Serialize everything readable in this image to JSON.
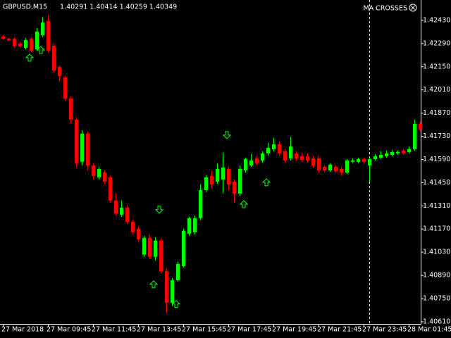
{
  "chart_data": {
    "type": "candlestick",
    "symbol": "GBPUSD,M15",
    "quote": "1.40291 1.40414 1.40259 1.40349",
    "indicator": "MA CROSSES",
    "bull_color": "#00ff00",
    "bear_color": "#ff0000",
    "signal_color": "#00ff00",
    "grid": false,
    "categories": [
      "27 Mar 2018",
      null,
      null,
      null,
      null,
      null,
      null,
      null,
      "27 Mar 09:45",
      null,
      null,
      null,
      null,
      null,
      null,
      null,
      "27 Mar 11:45",
      null,
      null,
      null,
      null,
      null,
      null,
      null,
      "27 Mar 13:45",
      null,
      null,
      null,
      null,
      null,
      null,
      null,
      "27 Mar 15:45",
      null,
      null,
      null,
      null,
      null,
      null,
      null,
      "27 Mar 17:45",
      null,
      null,
      null,
      null,
      null,
      null,
      null,
      "27 Mar 19:45",
      null,
      null,
      null,
      null,
      null,
      null,
      null,
      "27 Mar 21:45",
      null,
      null,
      null,
      null,
      null,
      null,
      null,
      "27 Mar 23:45",
      null,
      null,
      null,
      null,
      null,
      null,
      null,
      "28 Mar 01:45",
      null,
      null
    ],
    "open": [
      1.42332,
      1.42319,
      1.42319,
      1.4229,
      1.42264,
      1.42319,
      1.42255,
      1.4234,
      1.42426,
      1.42277,
      1.42149,
      1.42086,
      1.41958,
      1.41831,
      1.41576,
      1.41746,
      1.41554,
      1.41482,
      1.41511,
      1.41482,
      1.41342,
      1.41257,
      1.41299,
      1.41214,
      1.41172,
      1.41015,
      1.41117,
      1.41002,
      1.411,
      1.40916,
      1.40725,
      1.40861,
      1.40946,
      1.41142,
      1.41151,
      1.41236,
      1.41405,
      1.4149,
      1.41456,
      1.41469,
      1.41533,
      1.41456,
      1.41384,
      1.41524,
      1.41554,
      1.41597,
      1.41584,
      1.41627,
      1.41652,
      1.41682,
      1.41639,
      1.41597,
      1.41627,
      1.4161,
      1.4161,
      1.41597,
      1.41597,
      1.41546,
      1.41524,
      1.41546,
      1.41533,
      1.41511,
      1.41576,
      1.41576,
      1.41592,
      1.41554,
      1.41592,
      1.41601,
      1.4161,
      1.41618,
      1.41627,
      1.41644,
      1.41635,
      1.41652,
      1.41805
    ],
    "high": [
      1.4234,
      1.42324,
      1.42328,
      1.42298,
      1.42324,
      1.42328,
      1.42383,
      1.42447,
      1.4246,
      1.4229,
      1.42158,
      1.42094,
      1.41971,
      1.41843,
      1.41767,
      1.41759,
      1.41567,
      1.41545,
      1.41524,
      1.4149,
      1.41384,
      1.41342,
      1.41312,
      1.41227,
      1.41184,
      1.41129,
      1.41134,
      1.41121,
      1.41113,
      1.40929,
      1.40874,
      1.40972,
      1.41172,
      1.41244,
      1.41252,
      1.41439,
      1.41494,
      1.4152,
      1.41567,
      1.41631,
      1.41545,
      1.41469,
      1.41554,
      1.41601,
      1.41622,
      1.4161,
      1.41639,
      1.4169,
      1.4172,
      1.41699,
      1.41652,
      1.41724,
      1.41639,
      1.41631,
      1.41627,
      1.4161,
      1.4161,
      1.41554,
      1.41567,
      1.41554,
      1.41541,
      1.41592,
      1.41597,
      1.41601,
      1.41601,
      1.41601,
      1.41622,
      1.41639,
      1.41644,
      1.41648,
      1.41644,
      1.41652,
      1.41669,
      1.41831,
      1.41818
    ],
    "low": [
      1.42315,
      1.42307,
      1.42268,
      1.42268,
      1.42255,
      1.42238,
      1.42247,
      1.42328,
      1.42238,
      1.42115,
      1.42064,
      1.41945,
      1.4181,
      1.41541,
      1.41554,
      1.41524,
      1.41469,
      1.41469,
      1.41443,
      1.41329,
      1.41252,
      1.41244,
      1.41201,
      1.41138,
      1.41095,
      1.41002,
      1.40989,
      1.4098,
      1.40903,
      1.40662,
      1.40704,
      1.40852,
      1.40938,
      1.41129,
      1.41138,
      1.41223,
      1.41393,
      1.41418,
      1.41443,
      1.41384,
      1.41405,
      1.41329,
      1.41371,
      1.41511,
      1.41545,
      1.41554,
      1.41571,
      1.41614,
      1.41639,
      1.41614,
      1.41571,
      1.41584,
      1.41584,
      1.41576,
      1.41571,
      1.41541,
      1.41511,
      1.41516,
      1.41516,
      1.41511,
      1.41494,
      1.41503,
      1.41567,
      1.41567,
      1.41567,
      1.41456,
      1.41584,
      1.41592,
      1.41601,
      1.4161,
      1.41618,
      1.41618,
      1.41627,
      1.41644,
      1.41763
    ],
    "close": [
      1.42319,
      1.42311,
      1.42277,
      1.42273,
      1.42311,
      1.42247,
      1.42362,
      1.42417,
      1.42247,
      1.42128,
      1.42094,
      1.41958,
      1.41831,
      1.41567,
      1.41746,
      1.41554,
      1.4149,
      1.41533,
      1.41456,
      1.41342,
      1.41265,
      1.41299,
      1.41214,
      1.41151,
      1.41108,
      1.41117,
      1.41002,
      1.411,
      1.40916,
      1.40725,
      1.40861,
      1.40959,
      1.41159,
      1.41236,
      1.41236,
      1.41405,
      1.41482,
      1.41439,
      1.41533,
      1.41541,
      1.41439,
      1.41384,
      1.41533,
      1.41592,
      1.41584,
      1.41567,
      1.41627,
      1.41661,
      1.41682,
      1.41627,
      1.41584,
      1.41669,
      1.41597,
      1.41588,
      1.41584,
      1.41554,
      1.41524,
      1.41524,
      1.41559,
      1.4152,
      1.41511,
      1.41584,
      1.41584,
      1.41592,
      1.41576,
      1.41592,
      1.4161,
      1.41618,
      1.41627,
      1.41635,
      1.41635,
      1.41627,
      1.41652,
      1.41805,
      1.41771
    ],
    "signals": [
      {
        "index": 5,
        "direction": "up",
        "price": 1.42205
      },
      {
        "index": 7,
        "direction": "up",
        "price": 1.42251
      },
      {
        "index": 27,
        "direction": "up",
        "price": 1.40836
      },
      {
        "index": 28,
        "direction": "down",
        "price": 1.41287
      },
      {
        "index": 31,
        "direction": "up",
        "price": 1.40717
      },
      {
        "index": 40,
        "direction": "down",
        "price": 1.41737
      },
      {
        "index": 43,
        "direction": "up",
        "price": 1.4132
      },
      {
        "index": 47,
        "direction": "up",
        "price": 1.41452
      }
    ],
    "ylim": [
      1.40597,
      1.42553
    ],
    "yticks": [
      {
        "value": 1.4243,
        "label": "1.42430"
      },
      {
        "value": 1.4229,
        "label": "1.42290"
      },
      {
        "value": 1.4215,
        "label": "1.42150"
      },
      {
        "value": 1.4201,
        "label": "1.42010"
      },
      {
        "value": 1.4187,
        "label": "1.41870"
      },
      {
        "value": 1.4173,
        "label": "1.41730"
      },
      {
        "value": 1.4159,
        "label": "1.41590"
      },
      {
        "value": 1.4145,
        "label": "1.41450"
      },
      {
        "value": 1.4131,
        "label": "1.41310"
      },
      {
        "value": 1.4117,
        "label": "1.41170"
      },
      {
        "value": 1.4103,
        "label": "1.41030"
      },
      {
        "value": 1.4089,
        "label": "1.40890"
      },
      {
        "value": 1.4075,
        "label": "1.40750"
      },
      {
        "value": 1.4061,
        "label": "1.40610"
      }
    ]
  }
}
